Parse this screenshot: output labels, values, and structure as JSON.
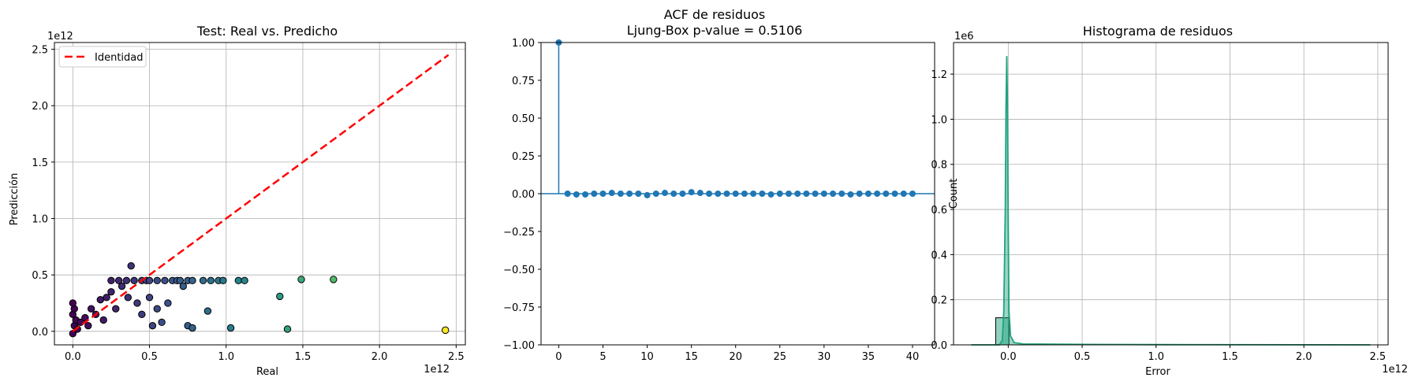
{
  "figure": {
    "background": "#ffffff",
    "grid_color": "#b0b0b0"
  },
  "chart_data": [
    {
      "type": "scatter",
      "title": "Test: Real vs. Predicho",
      "xlabel": "Real",
      "ylabel": "Predicción",
      "x_offset_text": "1e12",
      "y_offset_text": "1e12",
      "xlim": [
        -0.12,
        2.56
      ],
      "ylim": [
        -0.12,
        2.56
      ],
      "x_ticks": [
        "0.0",
        "0.5",
        "1.0",
        "1.5",
        "2.0",
        "2.5"
      ],
      "y_ticks": [
        "0.0",
        "0.5",
        "1.0",
        "1.5",
        "2.0",
        "2.5"
      ],
      "x_tick_values": [
        0,
        0.5,
        1.0,
        1.5,
        2.0,
        2.5
      ],
      "y_tick_values": [
        0,
        0.5,
        1.0,
        1.5,
        2.0,
        2.5
      ],
      "grid": true,
      "legend_position": "upper-left",
      "identity_line": {
        "label": "Identidad",
        "color": "#ff0000",
        "from": [
          0,
          0
        ],
        "to": [
          2.45,
          2.45
        ]
      },
      "colormap": [
        "#440154",
        "#3b528b",
        "#21918c",
        "#5ec962",
        "#fde725"
      ],
      "points": [
        [
          0.0,
          -0.02
        ],
        [
          0.01,
          0.05
        ],
        [
          0.02,
          0.1
        ],
        [
          0.0,
          0.15
        ],
        [
          0.01,
          0.2
        ],
        [
          0.0,
          0.25
        ],
        [
          0.03,
          0.02
        ],
        [
          0.05,
          0.08
        ],
        [
          0.08,
          0.12
        ],
        [
          0.1,
          0.05
        ],
        [
          0.12,
          0.2
        ],
        [
          0.15,
          0.15
        ],
        [
          0.18,
          0.28
        ],
        [
          0.2,
          0.1
        ],
        [
          0.22,
          0.3
        ],
        [
          0.25,
          0.35
        ],
        [
          0.25,
          0.45
        ],
        [
          0.28,
          0.2
        ],
        [
          0.3,
          0.45
        ],
        [
          0.32,
          0.4
        ],
        [
          0.35,
          0.45
        ],
        [
          0.38,
          0.58
        ],
        [
          0.36,
          0.3
        ],
        [
          0.4,
          0.45
        ],
        [
          0.42,
          0.25
        ],
        [
          0.45,
          0.45
        ],
        [
          0.48,
          0.45
        ],
        [
          0.5,
          0.45
        ],
        [
          0.45,
          0.15
        ],
        [
          0.5,
          0.3
        ],
        [
          0.52,
          0.05
        ],
        [
          0.55,
          0.45
        ],
        [
          0.55,
          0.2
        ],
        [
          0.58,
          0.08
        ],
        [
          0.6,
          0.45
        ],
        [
          0.62,
          0.25
        ],
        [
          0.65,
          0.45
        ],
        [
          0.68,
          0.45
        ],
        [
          0.7,
          0.45
        ],
        [
          0.72,
          0.4
        ],
        [
          0.75,
          0.45
        ],
        [
          0.78,
          0.45
        ],
        [
          0.75,
          0.05
        ],
        [
          0.78,
          0.03
        ],
        [
          0.85,
          0.45
        ],
        [
          0.88,
          0.18
        ],
        [
          0.9,
          0.45
        ],
        [
          0.95,
          0.45
        ],
        [
          0.98,
          0.45
        ],
        [
          1.03,
          0.03
        ],
        [
          1.08,
          0.45
        ],
        [
          1.12,
          0.45
        ],
        [
          1.35,
          0.31
        ],
        [
          1.4,
          0.02
        ],
        [
          1.49,
          0.46
        ],
        [
          1.7,
          0.46
        ],
        [
          2.43,
          0.01
        ]
      ]
    },
    {
      "type": "stem",
      "title": "ACF de residuos",
      "subtitle": "Ljung-Box p-value = 0.5106",
      "xlim": [
        -2,
        42.5
      ],
      "ylim": [
        -1.0,
        1.0
      ],
      "x_ticks": [
        "0",
        "5",
        "10",
        "15",
        "20",
        "25",
        "30",
        "35",
        "40"
      ],
      "x_tick_values": [
        0,
        5,
        10,
        15,
        20,
        25,
        30,
        35,
        40
      ],
      "y_ticks": [
        "1.00",
        "0.75",
        "0.50",
        "0.25",
        "0.00",
        "−0.25",
        "−0.50",
        "−0.75",
        "−1.00"
      ],
      "y_tick_values": [
        1.0,
        0.75,
        0.5,
        0.25,
        0.0,
        -0.25,
        -0.5,
        -0.75,
        -1.0
      ],
      "grid": false,
      "color": "#1f77b4",
      "lags": [
        0,
        1,
        2,
        3,
        4,
        5,
        6,
        7,
        8,
        9,
        10,
        11,
        12,
        13,
        14,
        15,
        16,
        17,
        18,
        19,
        20,
        21,
        22,
        23,
        24,
        25,
        26,
        27,
        28,
        29,
        30,
        31,
        32,
        33,
        34,
        35,
        36,
        37,
        38,
        39,
        40
      ],
      "values": [
        1.0,
        0.0,
        -0.005,
        -0.005,
        0.0,
        0.0,
        0.005,
        0.0,
        0.0,
        0.0,
        -0.01,
        0.0,
        0.005,
        0.0,
        0.0,
        0.01,
        0.005,
        0.0,
        0.0,
        0.0,
        0.0,
        0.0,
        0.0,
        0.0,
        -0.005,
        0.0,
        0.0,
        0.0,
        0.0,
        0.0,
        0.0,
        0.0,
        0.0,
        -0.005,
        0.0,
        0.0,
        0.0,
        0.0,
        0.0,
        0.0,
        0.0
      ]
    },
    {
      "type": "histogram",
      "title": "Histograma de residuos",
      "xlabel": "Error",
      "ylabel": "Count",
      "x_offset_text": "1e12",
      "y_offset_text": "1e6",
      "xlim": [
        -0.37,
        2.57
      ],
      "ylim": [
        0,
        1.34
      ],
      "x_ticks": [
        "0.0",
        "0.5",
        "1.0",
        "1.5",
        "2.0",
        "2.5"
      ],
      "x_tick_values": [
        0,
        0.5,
        1.0,
        1.5,
        2.0,
        2.5
      ],
      "y_ticks": [
        "0.0",
        "0.2",
        "0.4",
        "0.6",
        "0.8",
        "1.0",
        "1.2"
      ],
      "y_tick_values": [
        0,
        0.2,
        0.4,
        0.6,
        0.8,
        1.0,
        1.2
      ],
      "grid": true,
      "color": "#21a37f",
      "bars": [
        {
          "x0": -0.085,
          "x1": 0.005,
          "count": 0.12
        }
      ],
      "kde": [
        [
          -0.25,
          0.0
        ],
        [
          -0.06,
          0.0
        ],
        [
          -0.04,
          0.02
        ],
        [
          -0.03,
          0.15
        ],
        [
          -0.02,
          0.6
        ],
        [
          -0.015,
          1.05
        ],
        [
          -0.01,
          1.28
        ],
        [
          -0.005,
          1.05
        ],
        [
          0.0,
          0.55
        ],
        [
          0.005,
          0.15
        ],
        [
          0.015,
          0.04
        ],
        [
          0.04,
          0.01
        ],
        [
          0.1,
          0.004
        ],
        [
          0.5,
          0.002
        ],
        [
          1.0,
          0.001
        ],
        [
          2.45,
          0.0
        ]
      ]
    }
  ]
}
